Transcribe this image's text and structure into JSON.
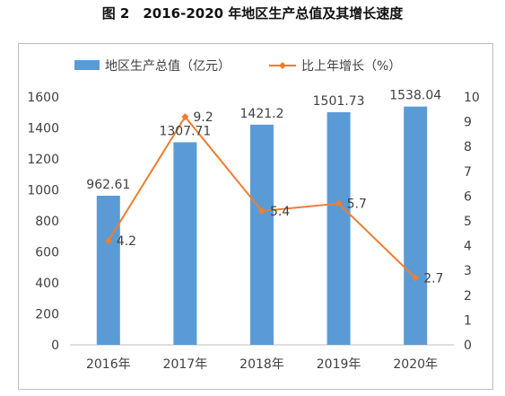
{
  "figure_title": "图 2　2016-2020 年地区生产总值及其增长速度",
  "colors": {
    "bar": "#5b9bd5",
    "line": "#ed7d31",
    "axis": "#bfbfbf",
    "text": "#404040"
  },
  "chart_data": {
    "type": "bar",
    "categories": [
      "2016年",
      "2017年",
      "2018年",
      "2019年",
      "2020年"
    ],
    "series": [
      {
        "name": "地区生产总值（亿元）",
        "kind": "bar",
        "axis": "left",
        "values": [
          962.61,
          1307.71,
          1421.2,
          1501.73,
          1538.04
        ],
        "labels": [
          "962.61",
          "1307.71",
          "1421.2",
          "1501.73",
          "1538.04"
        ]
      },
      {
        "name": "比上年增长（%）",
        "kind": "line",
        "axis": "right",
        "values": [
          4.2,
          9.2,
          5.4,
          5.7,
          2.7
        ],
        "labels": [
          "4.2",
          "9.2",
          "5.4",
          "5.7",
          "2.7"
        ]
      }
    ],
    "y_left": {
      "min": 0,
      "max": 1600,
      "step": 200
    },
    "y_right": {
      "min": 0,
      "max": 10,
      "step": 1
    },
    "legend_position": "top",
    "grid": false
  }
}
